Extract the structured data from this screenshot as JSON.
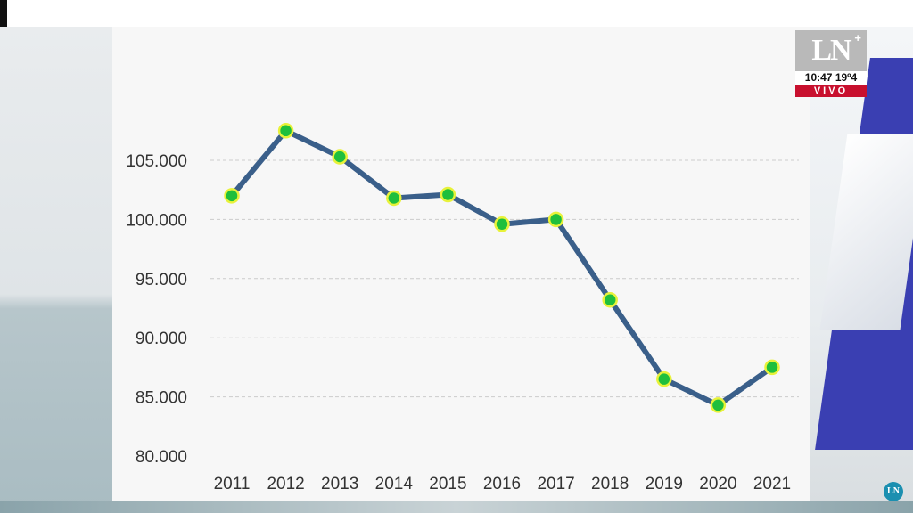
{
  "broadcast": {
    "channel_logo": "LN",
    "logo_plus": "+",
    "time": "10:47",
    "temperature": "19º4",
    "live_label": "VIVO",
    "corner_logo": "LN"
  },
  "colors": {
    "line": "#3a5f8a",
    "marker_fill": "#1fbf3c",
    "marker_stroke": "#e8f23a",
    "grid": "#cccccc",
    "axis_text": "#333333",
    "live_red": "#c8102e"
  },
  "chart_data": {
    "type": "line",
    "title": "",
    "xlabel": "",
    "ylabel": "",
    "categories": [
      "2011",
      "2012",
      "2013",
      "2014",
      "2015",
      "2016",
      "2017",
      "2018",
      "2019",
      "2020",
      "2021"
    ],
    "series": [
      {
        "values": [
          102000,
          107500,
          105300,
          101800,
          102100,
          99600,
          100000,
          93200,
          86500,
          84300,
          87500
        ]
      }
    ],
    "ylim": [
      80000,
      110000
    ],
    "y_ticks": [
      80000,
      85000,
      90000,
      95000,
      100000,
      105000
    ],
    "y_tick_labels": [
      "80.000",
      "85.000",
      "90.000",
      "95.000",
      "100.000",
      "105.000"
    ],
    "grid": true,
    "grid_style": "dashed horizontal",
    "legend": "none",
    "markers": true
  }
}
